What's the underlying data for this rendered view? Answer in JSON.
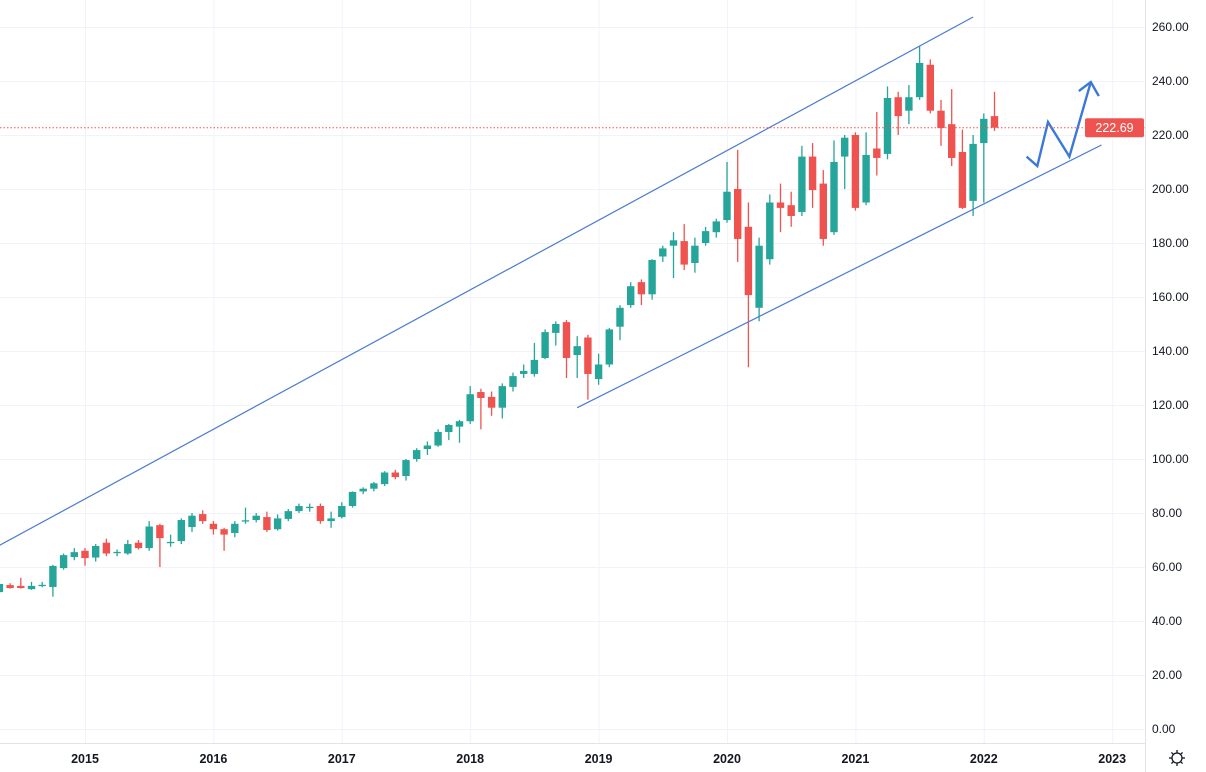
{
  "chart_data": {
    "type": "candlestick",
    "title": "",
    "interval": "monthly",
    "xlabel": "",
    "ylabel": "",
    "ylim": [
      0,
      260
    ],
    "grid": true,
    "y_ticks": [
      "0.00",
      "20.00",
      "40.00",
      "60.00",
      "80.00",
      "100.00",
      "120.00",
      "140.00",
      "160.00",
      "180.00",
      "200.00",
      "220.00",
      "240.00",
      "260.00"
    ],
    "x_ticks": [
      "2015",
      "2016",
      "2017",
      "2018",
      "2019",
      "2020",
      "2021",
      "2022",
      "2023"
    ],
    "current_price": "222.69",
    "colors": {
      "up": "#26a69a",
      "down": "#ef5350",
      "trendline": "#4a7bd0",
      "arrow": "#3b78d8",
      "price_label": "#ef5350"
    },
    "candle_fields": [
      "date",
      "open",
      "high",
      "low",
      "close"
    ],
    "candles": [
      [
        "2014-05",
        50.7,
        54.5,
        50,
        53.7
      ],
      [
        "2014-06",
        53.3,
        54,
        52,
        52.2
      ],
      [
        "2014-07",
        53,
        56,
        52,
        52.2
      ],
      [
        "2014-08",
        51.8,
        54.5,
        51.5,
        53
      ],
      [
        "2014-09",
        53.3,
        54.5,
        52.5,
        53.4
      ],
      [
        "2014-10",
        52.6,
        60.8,
        49,
        60.4
      ],
      [
        "2014-11",
        59.6,
        65,
        59,
        64.4
      ],
      [
        "2014-12",
        63.7,
        67,
        62.5,
        65.5
      ],
      [
        "2015-01",
        66,
        67,
        60.5,
        63.3
      ],
      [
        "2015-02",
        63.5,
        68.5,
        62,
        67.8
      ],
      [
        "2015-03",
        69,
        70.5,
        64,
        65
      ],
      [
        "2015-04",
        65.3,
        66.5,
        64,
        65.6
      ],
      [
        "2015-05",
        65,
        70,
        64.5,
        68.5
      ],
      [
        "2015-06",
        69,
        70,
        66.5,
        67
      ],
      [
        "2015-07",
        67,
        77,
        66,
        75
      ],
      [
        "2015-08",
        75.5,
        76,
        60,
        70.7
      ],
      [
        "2015-09",
        69,
        72,
        67.5,
        69.3
      ],
      [
        "2015-10",
        69.6,
        78,
        68.5,
        77.4
      ],
      [
        "2015-11",
        74.8,
        80,
        73,
        79
      ],
      [
        "2015-12",
        79.6,
        81,
        76,
        77
      ],
      [
        "2016-01",
        76,
        77,
        72,
        74
      ],
      [
        "2016-02",
        74,
        74.5,
        66,
        72
      ],
      [
        "2016-03",
        72.6,
        77,
        71,
        76
      ],
      [
        "2016-04",
        77,
        82,
        76,
        77.3
      ],
      [
        "2016-05",
        77.4,
        80,
        76.5,
        79
      ],
      [
        "2016-06",
        78.5,
        80.5,
        73,
        73.7
      ],
      [
        "2016-07",
        74,
        79.5,
        73.5,
        78
      ],
      [
        "2016-08",
        77.8,
        81.5,
        77,
        80.7
      ],
      [
        "2016-09",
        80.7,
        83.5,
        80,
        82.6
      ],
      [
        "2016-10",
        82,
        83.5,
        80.5,
        82.3
      ],
      [
        "2016-11",
        82.6,
        83.5,
        76,
        77
      ],
      [
        "2016-12",
        77,
        80.5,
        74.5,
        78
      ],
      [
        "2017-01",
        78.5,
        84,
        78,
        82.6
      ],
      [
        "2017-02",
        82.6,
        88,
        82,
        87.8
      ],
      [
        "2017-03",
        88,
        89.5,
        87,
        89
      ],
      [
        "2017-04",
        89,
        91.5,
        88,
        91
      ],
      [
        "2017-05",
        90.7,
        95.5,
        90,
        95
      ],
      [
        "2017-06",
        95,
        96,
        92.5,
        93.3
      ],
      [
        "2017-07",
        93.7,
        100,
        92,
        99.6
      ],
      [
        "2017-08",
        100,
        104,
        99,
        103.3
      ],
      [
        "2017-09",
        103.7,
        106.5,
        101.5,
        105
      ],
      [
        "2017-10",
        105,
        111,
        104.5,
        110
      ],
      [
        "2017-11",
        110,
        113,
        107,
        112.6
      ],
      [
        "2017-12",
        112,
        114.5,
        106,
        114
      ],
      [
        "2018-01",
        114,
        127,
        113,
        124
      ],
      [
        "2018-02",
        124.8,
        126,
        111,
        122.6
      ],
      [
        "2018-03",
        123,
        125,
        116,
        119
      ],
      [
        "2018-04",
        119,
        128,
        115,
        127
      ],
      [
        "2018-05",
        126.7,
        132,
        125,
        130.7
      ],
      [
        "2018-06",
        131.5,
        135,
        130,
        132.6
      ],
      [
        "2018-07",
        131.5,
        143,
        130.5,
        136.7
      ],
      [
        "2018-08",
        137.4,
        148,
        137,
        147
      ],
      [
        "2018-09",
        146.7,
        151,
        142,
        150
      ],
      [
        "2018-10",
        150.7,
        151.5,
        130,
        137.4
      ],
      [
        "2018-11",
        138.5,
        145.5,
        130,
        141.8
      ],
      [
        "2018-12",
        145,
        146,
        122,
        131.5
      ],
      [
        "2019-01",
        129.6,
        139,
        127.5,
        135
      ],
      [
        "2019-02",
        135,
        148.5,
        134,
        148
      ],
      [
        "2019-03",
        149,
        157,
        144,
        156
      ],
      [
        "2019-04",
        157,
        165.5,
        156,
        164
      ],
      [
        "2019-05",
        165.5,
        166.5,
        157,
        161
      ],
      [
        "2019-06",
        161,
        174,
        159,
        173.7
      ],
      [
        "2019-07",
        175,
        179,
        173,
        178
      ],
      [
        "2019-08",
        179,
        184,
        167,
        181
      ],
      [
        "2019-09",
        180.7,
        187,
        170,
        172
      ],
      [
        "2019-10",
        172.6,
        182,
        169,
        179
      ],
      [
        "2019-11",
        180,
        186,
        179,
        184.4
      ],
      [
        "2019-12",
        184,
        189,
        182,
        188
      ],
      [
        "2020-01",
        188.5,
        210,
        187.5,
        199
      ],
      [
        "2020-02",
        200,
        214.5,
        173,
        181.5
      ],
      [
        "2020-03",
        186,
        195,
        134,
        160.7
      ],
      [
        "2020-04",
        156,
        182,
        151,
        179
      ],
      [
        "2020-05",
        174,
        198,
        172,
        195
      ],
      [
        "2020-06",
        195,
        202,
        184,
        193
      ],
      [
        "2020-07",
        194,
        199,
        186,
        190
      ],
      [
        "2020-08",
        191.5,
        216,
        190,
        212
      ],
      [
        "2020-09",
        212,
        217,
        193,
        199.6
      ],
      [
        "2020-10",
        202,
        207,
        179,
        181.5
      ],
      [
        "2020-11",
        184,
        218,
        183,
        210
      ],
      [
        "2020-12",
        212,
        220,
        200,
        219
      ],
      [
        "2021-01",
        220,
        221,
        192,
        193
      ],
      [
        "2021-02",
        195,
        221,
        194,
        212.6
      ],
      [
        "2021-03",
        215,
        228.5,
        205,
        211.5
      ],
      [
        "2021-04",
        213,
        238,
        211,
        233.7
      ],
      [
        "2021-05",
        234,
        236,
        220,
        227
      ],
      [
        "2021-06",
        229,
        238.5,
        224,
        234
      ],
      [
        "2021-07",
        234,
        253,
        233,
        246.7
      ],
      [
        "2021-08",
        246,
        248,
        228,
        229
      ],
      [
        "2021-09",
        229,
        233,
        216,
        222.6
      ],
      [
        "2021-10",
        224,
        237,
        208.5,
        211.5
      ],
      [
        "2021-11",
        213.7,
        222,
        192.6,
        193
      ],
      [
        "2021-12",
        195.6,
        220,
        190,
        216.7
      ],
      [
        "2022-01",
        217,
        228,
        195,
        226
      ],
      [
        "2022-02",
        227,
        236,
        221.5,
        222.7
      ]
    ],
    "annotations": {
      "channel_upper": {
        "from": [
          "2014-05",
          68
        ],
        "to": [
          "2021-12",
          263.7
        ]
      },
      "channel_lower": {
        "from": [
          "2018-11",
          119
        ],
        "to": [
          "2022-12",
          216.3
        ]
      },
      "projection_path": [
        [
          "2022-05",
          212
        ],
        [
          "2022-06",
          208.5
        ],
        [
          "2022-07",
          224.8
        ],
        [
          "2022-09",
          212
        ],
        [
          "2022-11",
          239.6
        ]
      ]
    }
  },
  "ui": {
    "settings_icon": "gear-icon"
  }
}
